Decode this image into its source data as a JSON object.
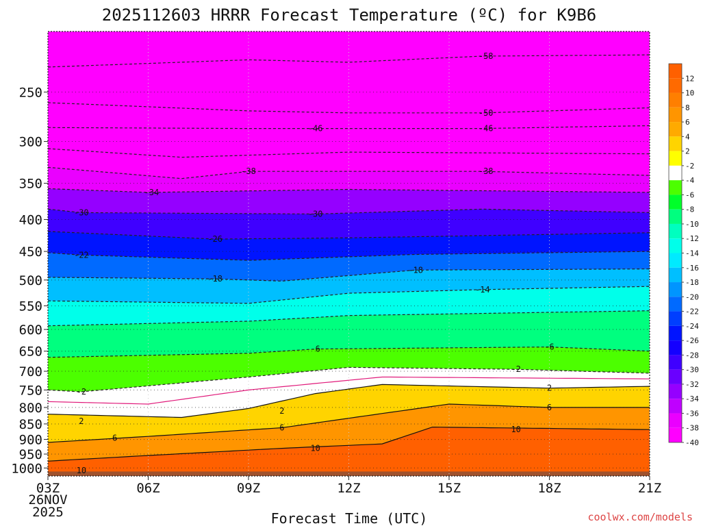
{
  "chart_data": {
    "type": "heatmap",
    "title": "2025112603 HRRR Forecast Temperature (ºC) for K9B6",
    "xlabel": "Forecast Time (UTC)",
    "ylabel": "",
    "x_ticks": [
      {
        "label": "03Z",
        "hour": 3
      },
      {
        "label": "06Z",
        "hour": 6
      },
      {
        "label": "09Z",
        "hour": 9
      },
      {
        "label": "12Z",
        "hour": 12
      },
      {
        "label": "15Z",
        "hour": 15
      },
      {
        "label": "18Z",
        "hour": 18
      },
      {
        "label": "21Z",
        "hour": 21
      }
    ],
    "x_date": [
      "26NOV",
      "2025"
    ],
    "xlim": [
      3,
      21
    ],
    "y_ticks": [
      250,
      300,
      350,
      400,
      450,
      500,
      550,
      600,
      650,
      700,
      750,
      800,
      850,
      900,
      950,
      1000
    ],
    "ylim": [
      1030,
      200
    ],
    "y_scale": "log-pressure",
    "grid": true,
    "colorbar": {
      "units": "°C",
      "labels": [
        "12",
        "10",
        "8",
        "6",
        "4",
        "2",
        "-2",
        "-4",
        "-6",
        "-8",
        "-10",
        "-12",
        "-14",
        "-16",
        "-18",
        "-20",
        "-22",
        "-24",
        "-26",
        "-28",
        "-30",
        "-32",
        "-34",
        "-36",
        "-38",
        "-40"
      ],
      "colors": [
        "#ff6a00",
        "#ff7f00",
        "#ff9500",
        "#ffaa00",
        "#ffd400",
        "#ffff00",
        "#ffffff",
        "#4cff00",
        "#00ff2a",
        "#00ff7f",
        "#00ffbf",
        "#00ffea",
        "#00eaff",
        "#00bfff",
        "#0095ff",
        "#006aff",
        "#003fff",
        "#0014ff",
        "#1400ff",
        "#3f00ff",
        "#6a00ff",
        "#9500ff",
        "#bf00ff",
        "#ea00ff",
        "#ff00ff"
      ]
    },
    "series": [
      {
        "level": -58,
        "values": [
          {
            "hour": 3,
            "p": 228
          },
          {
            "hour": 9,
            "p": 222
          },
          {
            "hour": 12,
            "p": 224
          },
          {
            "hour": 16,
            "p": 219
          },
          {
            "hour": 21,
            "p": 218
          }
        ]
      },
      {
        "level": -50,
        "values": [
          {
            "hour": 3,
            "p": 260
          },
          {
            "hour": 9,
            "p": 268
          },
          {
            "hour": 12,
            "p": 270
          },
          {
            "hour": 16,
            "p": 270
          },
          {
            "hour": 21,
            "p": 265
          }
        ]
      },
      {
        "level": -46,
        "values": [
          {
            "hour": 3,
            "p": 285
          },
          {
            "hour": 9,
            "p": 286
          },
          {
            "hour": 11,
            "p": 286
          },
          {
            "hour": 16,
            "p": 286
          },
          {
            "hour": 21,
            "p": 283
          }
        ]
      },
      {
        "level": -42,
        "values": [
          {
            "hour": 3,
            "p": 308
          },
          {
            "hour": 7,
            "p": 318
          },
          {
            "hour": 12,
            "p": 312
          },
          {
            "hour": 21,
            "p": 314
          }
        ]
      },
      {
        "level": -38,
        "values": [
          {
            "hour": 3,
            "p": 330
          },
          {
            "hour": 7,
            "p": 344
          },
          {
            "hour": 9,
            "p": 335
          },
          {
            "hour": 16,
            "p": 335
          },
          {
            "hour": 21,
            "p": 340
          }
        ]
      },
      {
        "level": -34,
        "values": [
          {
            "hour": 3,
            "p": 357
          },
          {
            "hour": 6,
            "p": 362
          },
          {
            "hour": 12,
            "p": 358
          },
          {
            "hour": 21,
            "p": 362
          }
        ]
      },
      {
        "level": -30,
        "values": [
          {
            "hour": 3,
            "p": 385
          },
          {
            "hour": 4,
            "p": 390
          },
          {
            "hour": 11,
            "p": 392
          },
          {
            "hour": 16,
            "p": 385
          },
          {
            "hour": 21,
            "p": 390
          }
        ]
      },
      {
        "level": -26,
        "values": [
          {
            "hour": 3,
            "p": 418
          },
          {
            "hour": 8,
            "p": 430
          },
          {
            "hour": 12,
            "p": 428
          },
          {
            "hour": 21,
            "p": 420
          }
        ]
      },
      {
        "level": -22,
        "values": [
          {
            "hour": 3,
            "p": 452
          },
          {
            "hour": 4,
            "p": 456
          },
          {
            "hour": 9,
            "p": 465
          },
          {
            "hour": 14,
            "p": 455
          },
          {
            "hour": 21,
            "p": 450
          }
        ]
      },
      {
        "level": -18,
        "values": [
          {
            "hour": 3,
            "p": 495
          },
          {
            "hour": 8,
            "p": 498
          },
          {
            "hour": 10,
            "p": 502
          },
          {
            "hour": 14,
            "p": 482
          },
          {
            "hour": 21,
            "p": 480
          }
        ]
      },
      {
        "level": -14,
        "values": [
          {
            "hour": 3,
            "p": 540
          },
          {
            "hour": 9,
            "p": 545
          },
          {
            "hour": 12,
            "p": 525
          },
          {
            "hour": 16,
            "p": 518
          },
          {
            "hour": 21,
            "p": 512
          }
        ]
      },
      {
        "level": -10,
        "values": [
          {
            "hour": 3,
            "p": 592
          },
          {
            "hour": 9,
            "p": 582
          },
          {
            "hour": 12,
            "p": 570
          },
          {
            "hour": 21,
            "p": 560
          }
        ]
      },
      {
        "level": -6,
        "values": [
          {
            "hour": 3,
            "p": 665
          },
          {
            "hour": 9,
            "p": 655
          },
          {
            "hour": 11,
            "p": 645
          },
          {
            "hour": 18,
            "p": 640
          },
          {
            "hour": 21,
            "p": 650
          }
        ]
      },
      {
        "level": -2,
        "values": [
          {
            "hour": 3,
            "p": 750
          },
          {
            "hour": 4,
            "p": 755
          },
          {
            "hour": 9,
            "p": 715
          },
          {
            "hour": 12,
            "p": 690
          },
          {
            "hour": 17,
            "p": 695
          },
          {
            "hour": 21,
            "p": 705
          }
        ]
      },
      {
        "level": 0,
        "values": [
          {
            "hour": 3,
            "p": 783
          },
          {
            "hour": 6,
            "p": 790
          },
          {
            "hour": 9,
            "p": 750
          },
          {
            "hour": 13,
            "p": 715
          },
          {
            "hour": 21,
            "p": 720
          }
        ]
      },
      {
        "level": 2,
        "values": [
          {
            "hour": 3,
            "p": 820
          },
          {
            "hour": 7,
            "p": 830
          },
          {
            "hour": 9,
            "p": 803
          },
          {
            "hour": 11,
            "p": 760
          },
          {
            "hour": 13,
            "p": 735
          },
          {
            "hour": 18,
            "p": 745
          },
          {
            "hour": 21,
            "p": 740
          }
        ]
      },
      {
        "level": 6,
        "values": [
          {
            "hour": 3,
            "p": 910
          },
          {
            "hour": 6,
            "p": 890
          },
          {
            "hour": 10,
            "p": 862
          },
          {
            "hour": 13,
            "p": 818
          },
          {
            "hour": 15,
            "p": 790
          },
          {
            "hour": 18,
            "p": 800
          },
          {
            "hour": 21,
            "p": 800
          }
        ]
      },
      {
        "level": 10,
        "values": [
          {
            "hour": 3,
            "p": 975
          },
          {
            "hour": 6,
            "p": 955
          },
          {
            "hour": 10,
            "p": 930
          },
          {
            "hour": 13,
            "p": 915
          },
          {
            "hour": 14.5,
            "p": 860
          },
          {
            "hour": 21,
            "p": 868
          }
        ]
      }
    ],
    "annotations": [
      {
        "text": "-58",
        "hour": 16.1,
        "p": 219
      },
      {
        "text": "-50",
        "hour": 16.1,
        "p": 270
      },
      {
        "text": "-46",
        "hour": 11,
        "p": 286
      },
      {
        "text": "-46",
        "hour": 16.1,
        "p": 286
      },
      {
        "text": "-38",
        "hour": 9,
        "p": 335
      },
      {
        "text": "-38",
        "hour": 16.1,
        "p": 335
      },
      {
        "text": "-34",
        "hour": 6.1,
        "p": 362
      },
      {
        "text": "-30",
        "hour": 4,
        "p": 390
      },
      {
        "text": "-30",
        "hour": 11,
        "p": 392
      },
      {
        "text": "-26",
        "hour": 8,
        "p": 430
      },
      {
        "text": "-22",
        "hour": 4,
        "p": 456
      },
      {
        "text": "-18",
        "hour": 8,
        "p": 498
      },
      {
        "text": "-18",
        "hour": 14,
        "p": 482
      },
      {
        "text": "-14",
        "hour": 16,
        "p": 518
      },
      {
        "text": "-6",
        "hour": 11,
        "p": 645
      },
      {
        "text": "-6",
        "hour": 18,
        "p": 640
      },
      {
        "text": "-2",
        "hour": 4,
        "p": 755
      },
      {
        "text": "-2",
        "hour": 17,
        "p": 695
      },
      {
        "text": "2",
        "hour": 4,
        "p": 842
      },
      {
        "text": "2",
        "hour": 10,
        "p": 810
      },
      {
        "text": "2",
        "hour": 18,
        "p": 745
      },
      {
        "text": "6",
        "hour": 5,
        "p": 895
      },
      {
        "text": "6",
        "hour": 10,
        "p": 862
      },
      {
        "text": "6",
        "hour": 18,
        "p": 800
      },
      {
        "text": "10",
        "hour": 4,
        "p": 1010
      },
      {
        "text": "10",
        "hour": 11,
        "p": 930
      },
      {
        "text": "10",
        "hour": 17,
        "p": 868
      }
    ]
  },
  "credit": "coolwx.com/models"
}
